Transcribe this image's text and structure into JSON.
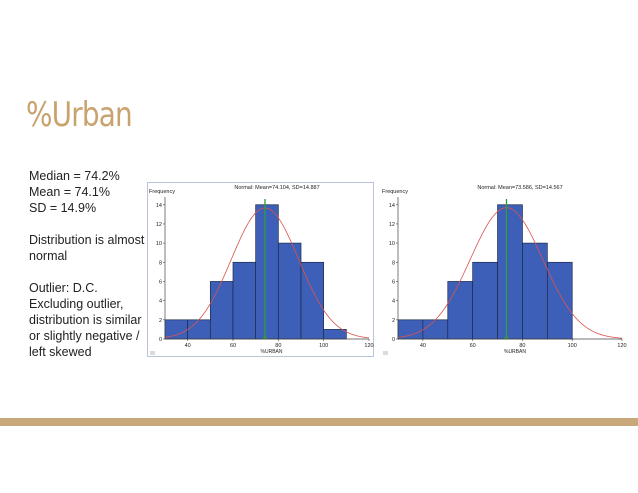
{
  "slide": {
    "title": "%Urban",
    "title_color": "#C8A36E",
    "accent_bar_color": "#C8A77B",
    "notes": [
      "Median = 74.2%",
      "Mean = 74.1%",
      "SD = 14.9%",
      "",
      "Distribution is almost",
      "normal",
      "",
      "Outlier: D.C.",
      "Excluding outlier,",
      "distribution is similar",
      "or slightly negative /",
      "left skewed"
    ]
  },
  "chart_data": [
    {
      "type": "bar",
      "title": "Normal: Mean=74.104, SD=14.887",
      "xlabel": "%URBAN",
      "ylabel": "Frequency",
      "bin_edges": [
        30,
        40,
        50,
        60,
        70,
        80,
        90,
        100,
        110
      ],
      "values": [
        2,
        2,
        6,
        8,
        14,
        10,
        8,
        1
      ],
      "xlim": [
        30,
        120
      ],
      "ylim": [
        0,
        14.6
      ],
      "xticks": [
        40,
        60,
        80,
        100,
        120
      ],
      "yticks": [
        0,
        2,
        4,
        6,
        8,
        10,
        12,
        14
      ],
      "normal_curve": {
        "mean": 74.104,
        "sd": 14.887
      },
      "mean_marker": 74.104,
      "bar_color": "#3E5FB7",
      "curve_color": "#D9534F",
      "marker_color": "#2E9E3E"
    },
    {
      "type": "bar",
      "title": "Normal: Mean=73.586, SD=14.567",
      "xlabel": "%URBAN",
      "ylabel": "Frequency",
      "bin_edges": [
        30,
        40,
        50,
        60,
        70,
        80,
        90,
        100
      ],
      "values": [
        2,
        2,
        6,
        8,
        14,
        10,
        8
      ],
      "xlim": [
        30,
        120
      ],
      "ylim": [
        0,
        14.6
      ],
      "xticks": [
        40,
        60,
        80,
        100,
        120
      ],
      "yticks": [
        0,
        2,
        4,
        6,
        8,
        10,
        12,
        14
      ],
      "normal_curve": {
        "mean": 73.586,
        "sd": 14.567
      },
      "mean_marker": 73.586,
      "bar_color": "#3E5FB7",
      "curve_color": "#D9534F",
      "marker_color": "#2E9E3E"
    }
  ]
}
